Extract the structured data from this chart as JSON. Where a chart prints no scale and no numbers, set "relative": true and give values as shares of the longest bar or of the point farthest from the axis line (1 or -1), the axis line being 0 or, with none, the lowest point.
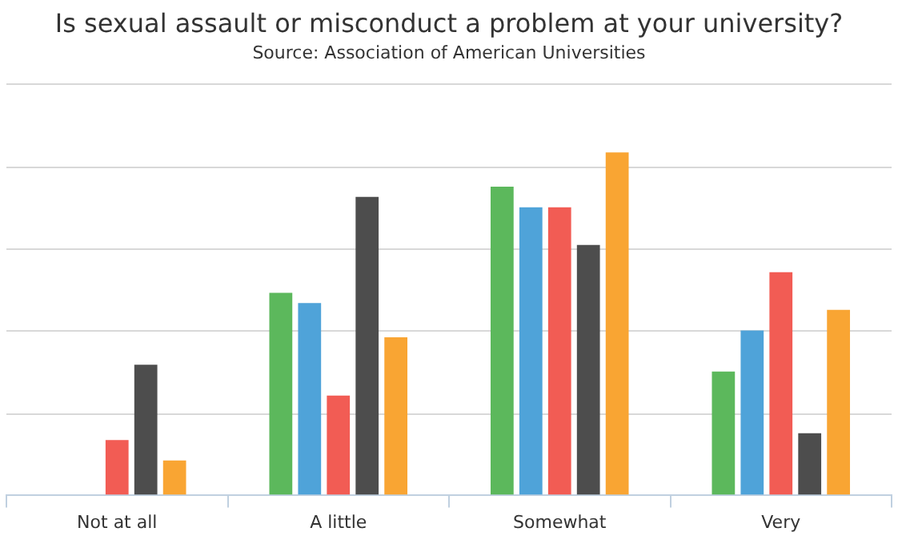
{
  "chart_data": {
    "type": "bar",
    "title": "Is sexual assault or misconduct a problem at your university?",
    "subtitle": "Source: Association of American Universities",
    "categories": [
      "Not at all",
      "A little",
      "Somewhat",
      "Very"
    ],
    "relative": true,
    "grid": "y",
    "legend": false,
    "series": [
      {
        "color": "#5cb85c",
        "values": [
          null,
          0.59,
          0.9,
          0.36
        ]
      },
      {
        "color": "#4fa3d9",
        "values": [
          null,
          0.56,
          0.84,
          0.48
        ]
      },
      {
        "color": "#f25c54",
        "values": [
          0.16,
          0.29,
          0.84,
          0.65
        ]
      },
      {
        "color": "#4d4d4d",
        "values": [
          0.38,
          0.87,
          0.73,
          0.18
        ]
      },
      {
        "color": "#f9a533",
        "values": [
          0.1,
          0.46,
          1,
          0.54
        ]
      }
    ]
  }
}
